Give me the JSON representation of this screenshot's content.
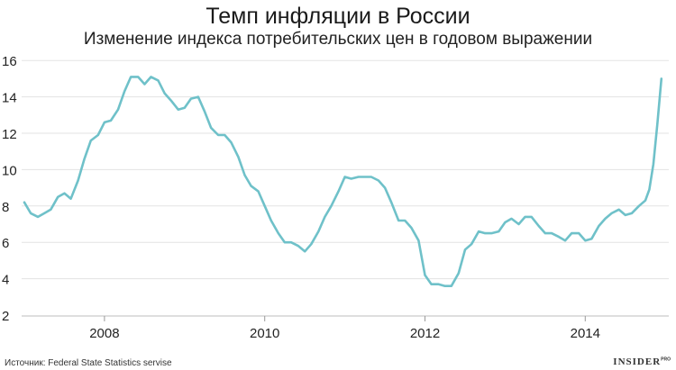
{
  "chart_data": {
    "type": "line",
    "title": "Темп инфляции в России",
    "subtitle": "Изменение индекса потребительских цен в годовом выражении",
    "xlabel": "",
    "ylabel": "",
    "xlim": [
      2007.0,
      2014.95
    ],
    "ylim": [
      2,
      16.5
    ],
    "y_ticks": [
      2,
      4,
      6,
      8,
      10,
      12,
      14,
      16
    ],
    "x_ticks": [
      2008,
      2010,
      2012,
      2014
    ],
    "grid": true,
    "legend": "none",
    "line_color": "#6fc1c9",
    "series": [
      {
        "x": [
          2007.0,
          2007.08,
          2007.17,
          2007.25,
          2007.33,
          2007.42,
          2007.5,
          2007.58,
          2007.67,
          2007.75,
          2007.83,
          2007.92,
          2008.0,
          2008.08,
          2008.17,
          2008.25,
          2008.33,
          2008.42,
          2008.5,
          2008.58,
          2008.67,
          2008.75,
          2008.83,
          2008.92,
          2009.0,
          2009.08,
          2009.17,
          2009.25,
          2009.33,
          2009.42,
          2009.5,
          2009.58,
          2009.67,
          2009.75,
          2009.83,
          2009.92,
          2010.0,
          2010.08,
          2010.17,
          2010.25,
          2010.33,
          2010.42,
          2010.5,
          2010.58,
          2010.67,
          2010.75,
          2010.83,
          2010.92,
          2011.0,
          2011.08,
          2011.17,
          2011.25,
          2011.33,
          2011.42,
          2011.5,
          2011.58,
          2011.67,
          2011.75,
          2011.83,
          2011.92,
          2012.0,
          2012.08,
          2012.17,
          2012.25,
          2012.33,
          2012.42,
          2012.5,
          2012.58,
          2012.67,
          2012.75,
          2012.83,
          2012.92,
          2013.0,
          2013.08,
          2013.17,
          2013.25,
          2013.33,
          2013.42,
          2013.5,
          2013.58,
          2013.67,
          2013.75,
          2013.83,
          2013.92,
          2014.0,
          2014.08,
          2014.17,
          2014.25,
          2014.33,
          2014.42,
          2014.5,
          2014.58,
          2014.67,
          2014.75,
          2014.8,
          2014.85,
          2014.9,
          2014.95
        ],
        "y": [
          8.2,
          7.6,
          7.4,
          7.6,
          7.8,
          8.5,
          8.7,
          8.4,
          9.4,
          10.6,
          11.6,
          11.9,
          12.6,
          12.7,
          13.3,
          14.3,
          15.1,
          15.1,
          14.7,
          15.1,
          14.9,
          14.2,
          13.8,
          13.3,
          13.4,
          13.9,
          14.0,
          13.2,
          12.3,
          11.9,
          11.9,
          11.5,
          10.7,
          9.7,
          9.1,
          8.8,
          8.0,
          7.2,
          6.5,
          6.0,
          6.0,
          5.8,
          5.5,
          5.9,
          6.6,
          7.4,
          8.0,
          8.8,
          9.6,
          9.5,
          9.6,
          9.6,
          9.6,
          9.4,
          9.0,
          8.2,
          7.2,
          7.2,
          6.8,
          6.1,
          4.2,
          3.7,
          3.7,
          3.6,
          3.6,
          4.3,
          5.6,
          5.9,
          6.6,
          6.5,
          6.5,
          6.6,
          7.1,
          7.3,
          7.0,
          7.4,
          7.4,
          6.9,
          6.5,
          6.5,
          6.3,
          6.1,
          6.5,
          6.5,
          6.1,
          6.2,
          6.9,
          7.3,
          7.6,
          7.8,
          7.5,
          7.6,
          8.0,
          8.3,
          8.9,
          10.3,
          12.5,
          15.0
        ]
      }
    ]
  },
  "footer": {
    "source": "Источник: Federal State Statistics servise",
    "logo": "INSIDER",
    "logo_suffix": "PRO"
  }
}
